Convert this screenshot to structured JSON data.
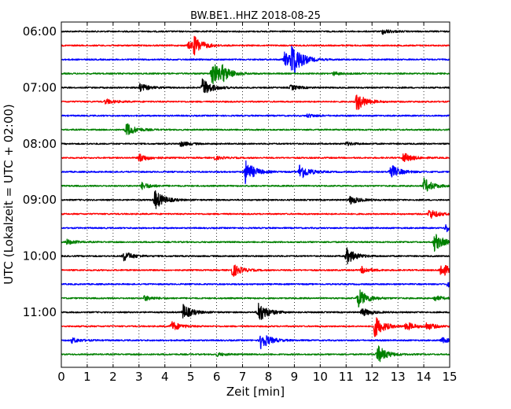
{
  "chart_data": {
    "type": "line",
    "title": "BW.BE1..HHZ 2018-08-25",
    "xlabel": "Zeit  [min]",
    "ylabel": "UTC (Lokalzeit = UTC + 02:00)",
    "xlim": [
      0,
      15
    ],
    "x_ticks": [
      "0",
      "1",
      "2",
      "3",
      "4",
      "5",
      "6",
      "7",
      "8",
      "9",
      "10",
      "11",
      "12",
      "13",
      "14",
      "15"
    ],
    "y_tick_labels": [
      "06:00",
      "07:00",
      "08:00",
      "09:00",
      "10:00",
      "11:00"
    ],
    "grid": "vertical dotted",
    "row_minutes": 15,
    "colors_cycle": [
      "#000000",
      "#ff0000",
      "#0000ff",
      "#008000"
    ],
    "series": [
      {
        "start": "06:00",
        "events": [
          [
            12.4,
            0.3
          ]
        ]
      },
      {
        "start": "06:15",
        "events": [
          [
            5.1,
            1.0
          ],
          [
            4.9,
            0.4
          ]
        ]
      },
      {
        "start": "06:30",
        "events": [
          [
            8.9,
            2.0
          ],
          [
            8.6,
            0.9
          ]
        ]
      },
      {
        "start": "06:45",
        "events": [
          [
            5.8,
            1.6
          ],
          [
            6.2,
            0.7
          ],
          [
            10.5,
            0.2
          ]
        ]
      },
      {
        "start": "07:00",
        "events": [
          [
            5.45,
            1.1
          ],
          [
            3.0,
            0.5
          ],
          [
            8.85,
            0.3
          ]
        ]
      },
      {
        "start": "07:15",
        "events": [
          [
            11.4,
            1.1
          ],
          [
            1.7,
            0.3
          ]
        ]
      },
      {
        "start": "07:30",
        "events": [
          [
            9.5,
            0.2
          ]
        ]
      },
      {
        "start": "07:45",
        "events": [
          [
            2.5,
            0.8
          ]
        ]
      },
      {
        "start": "08:00",
        "events": [
          [
            4.6,
            0.3
          ],
          [
            11.0,
            0.2
          ]
        ]
      },
      {
        "start": "08:15",
        "events": [
          [
            3.0,
            0.5
          ],
          [
            13.2,
            0.6
          ],
          [
            5.9,
            0.2
          ]
        ]
      },
      {
        "start": "08:30",
        "events": [
          [
            7.1,
            1.4
          ],
          [
            9.2,
            1.0
          ],
          [
            12.7,
            0.9
          ]
        ]
      },
      {
        "start": "08:45",
        "events": [
          [
            14.0,
            0.9
          ],
          [
            3.1,
            0.4
          ]
        ]
      },
      {
        "start": "09:00",
        "events": [
          [
            3.6,
            1.2
          ],
          [
            11.15,
            0.5
          ]
        ]
      },
      {
        "start": "09:15",
        "events": [
          [
            14.2,
            0.6
          ]
        ]
      },
      {
        "start": "09:30",
        "events": [
          [
            14.85,
            0.5
          ]
        ]
      },
      {
        "start": "09:45",
        "events": [
          [
            14.4,
            1.1
          ],
          [
            0.2,
            0.3
          ]
        ]
      },
      {
        "start": "10:00",
        "events": [
          [
            11.0,
            1.0
          ],
          [
            2.4,
            0.6
          ]
        ]
      },
      {
        "start": "10:15",
        "events": [
          [
            6.6,
            0.8
          ],
          [
            14.65,
            0.9
          ],
          [
            11.6,
            0.4
          ]
        ]
      },
      {
        "start": "10:30",
        "events": [
          [
            14.9,
            0.3
          ]
        ]
      },
      {
        "start": "10:45",
        "events": [
          [
            11.45,
            1.2
          ],
          [
            3.2,
            0.3
          ],
          [
            14.4,
            0.3
          ]
        ]
      },
      {
        "start": "11:00",
        "events": [
          [
            7.6,
            1.3
          ],
          [
            4.7,
            0.9
          ],
          [
            11.6,
            0.5
          ]
        ]
      },
      {
        "start": "11:15",
        "events": [
          [
            12.1,
            1.3
          ],
          [
            4.25,
            0.6
          ],
          [
            13.3,
            0.5
          ],
          [
            14.1,
            0.4
          ]
        ]
      },
      {
        "start": "11:30",
        "events": [
          [
            7.7,
            1.1
          ],
          [
            0.4,
            0.3
          ],
          [
            14.7,
            0.3
          ]
        ]
      },
      {
        "start": "11:45",
        "events": [
          [
            12.2,
            1.1
          ],
          [
            6.0,
            0.2
          ]
        ]
      }
    ]
  }
}
